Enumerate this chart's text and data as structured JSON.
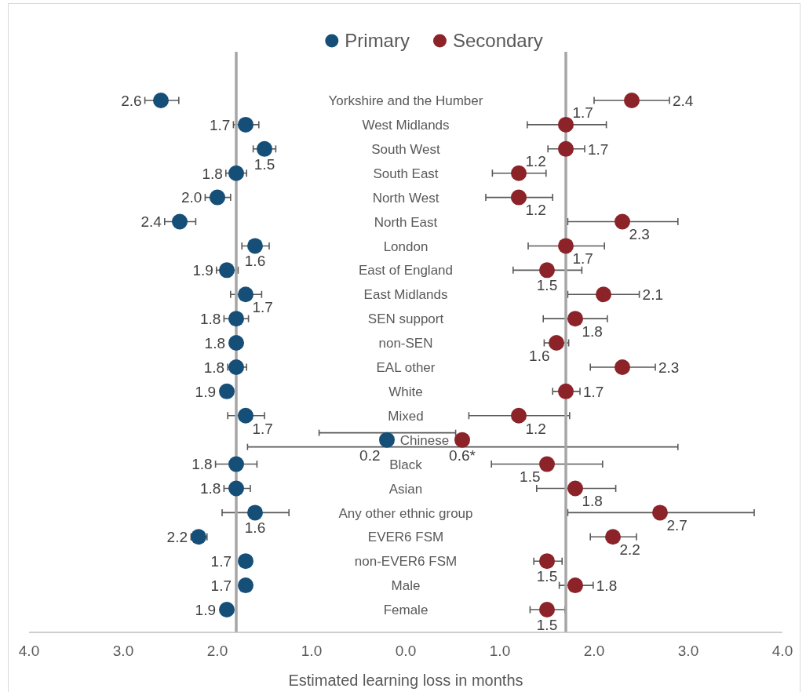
{
  "chart_data": {
    "type": "scatter",
    "orientation": "horizontal",
    "marker": "circle",
    "legend": "top",
    "categories": [
      "Yorkshire and the Humber",
      "West Midlands",
      "South West",
      "South East",
      "North West",
      "North East",
      "London",
      "East of England",
      "East Midlands",
      "SEN support",
      "non-SEN",
      "EAL other",
      "White",
      "Mixed",
      "Chinese",
      "Black",
      "Asian",
      "Any other ethnic group",
      "EVER6 FSM",
      "non-EVER6 FSM",
      "Male",
      "Female"
    ],
    "series": [
      {
        "name": "Primary",
        "color": "#154e77",
        "values": [
          2.6,
          1.7,
          1.5,
          1.8,
          2.0,
          2.4,
          1.6,
          1.9,
          1.7,
          1.8,
          1.8,
          1.8,
          1.9,
          1.7,
          0.2,
          1.8,
          1.8,
          1.6,
          2.2,
          1.7,
          1.7,
          1.9
        ],
        "errors": [
          [
            2.41,
            2.77
          ],
          [
            1.56,
            1.83
          ],
          [
            1.38,
            1.62
          ],
          [
            1.69,
            1.91
          ],
          [
            1.86,
            2.13
          ],
          [
            2.23,
            2.56
          ],
          [
            1.45,
            1.74
          ],
          [
            1.78,
            2.01
          ],
          [
            1.53,
            1.86
          ],
          [
            1.67,
            1.93
          ],
          null,
          [
            1.69,
            1.89
          ],
          null,
          [
            1.5,
            1.89
          ],
          [
            -0.53,
            0.92
          ],
          [
            1.58,
            2.02
          ],
          [
            1.65,
            1.93
          ],
          [
            1.24,
            1.95
          ],
          [
            2.11,
            2.28
          ],
          null,
          null,
          null
        ],
        "value_labels": [
          "2.6",
          "1.7",
          "1.5",
          "1.8",
          "2.0",
          "2.4",
          "1.6",
          "1.9",
          "1.7",
          "1.8",
          "1.8",
          "1.8",
          "1.9",
          "1.7",
          "0.2",
          "1.8",
          "1.8",
          "1.6",
          "2.2",
          "1.7",
          "1.7",
          "1.9"
        ]
      },
      {
        "name": "Secondary",
        "color": "#8b2329",
        "axis": "x2",
        "values": [
          2.4,
          1.7,
          1.7,
          1.2,
          1.2,
          2.3,
          1.7,
          1.5,
          2.1,
          1.8,
          1.6,
          2.3,
          1.7,
          1.2,
          0.6,
          1.5,
          1.8,
          2.7,
          2.2,
          1.5,
          1.8,
          1.5
        ],
        "errors": [
          [
            2.0,
            2.8
          ],
          [
            1.29,
            2.13
          ],
          [
            1.51,
            1.9
          ],
          [
            0.92,
            1.49
          ],
          [
            0.85,
            1.56
          ],
          [
            1.72,
            2.89
          ],
          [
            1.3,
            2.11
          ],
          [
            1.14,
            1.87
          ],
          [
            1.72,
            2.48
          ],
          [
            1.46,
            2.14
          ],
          [
            1.47,
            1.73
          ],
          [
            1.96,
            2.65
          ],
          [
            1.56,
            1.85
          ],
          [
            0.67,
            1.74
          ],
          [
            -1.68,
            2.89
          ],
          [
            0.91,
            2.09
          ],
          [
            1.39,
            2.23
          ],
          [
            1.72,
            3.7
          ],
          [
            1.96,
            2.45
          ],
          [
            1.36,
            1.66
          ],
          [
            1.63,
            1.99
          ],
          [
            1.32,
            1.69
          ]
        ],
        "value_labels": [
          "2.4",
          "1.7",
          "1.7",
          "1.2",
          "1.2",
          "2.3",
          "1.7",
          "1.5",
          "2.1",
          "1.8",
          "1.6",
          "2.3",
          "1.7",
          "1.2",
          "0.6*",
          "1.5",
          "1.8",
          "2.7",
          "2.2",
          "1.5",
          "1.8",
          "1.5"
        ]
      }
    ],
    "xlim": [
      4,
      -4
    ],
    "xticks": [
      {
        "value": 4,
        "label": "4.0"
      },
      {
        "value": 3,
        "label": "3.0"
      },
      {
        "value": 2,
        "label": "2.0"
      },
      {
        "value": 1,
        "label": "1.0"
      },
      {
        "value": 0,
        "label": "0.0"
      }
    ],
    "x2lim": [
      -4,
      4
    ],
    "x2ticks": [
      {
        "value": 1,
        "label": "1.0"
      },
      {
        "value": 2,
        "label": "2.0"
      },
      {
        "value": 3,
        "label": "3.0"
      },
      {
        "value": 4,
        "label": "4.0"
      }
    ],
    "xlabel": "Estimated learning loss in months",
    "ref_lines": [
      {
        "axis": "x",
        "value": 1.8,
        "color": "#a6a6a6"
      },
      {
        "axis": "x2",
        "value": 1.7,
        "color": "#a6a6a6"
      }
    ]
  }
}
